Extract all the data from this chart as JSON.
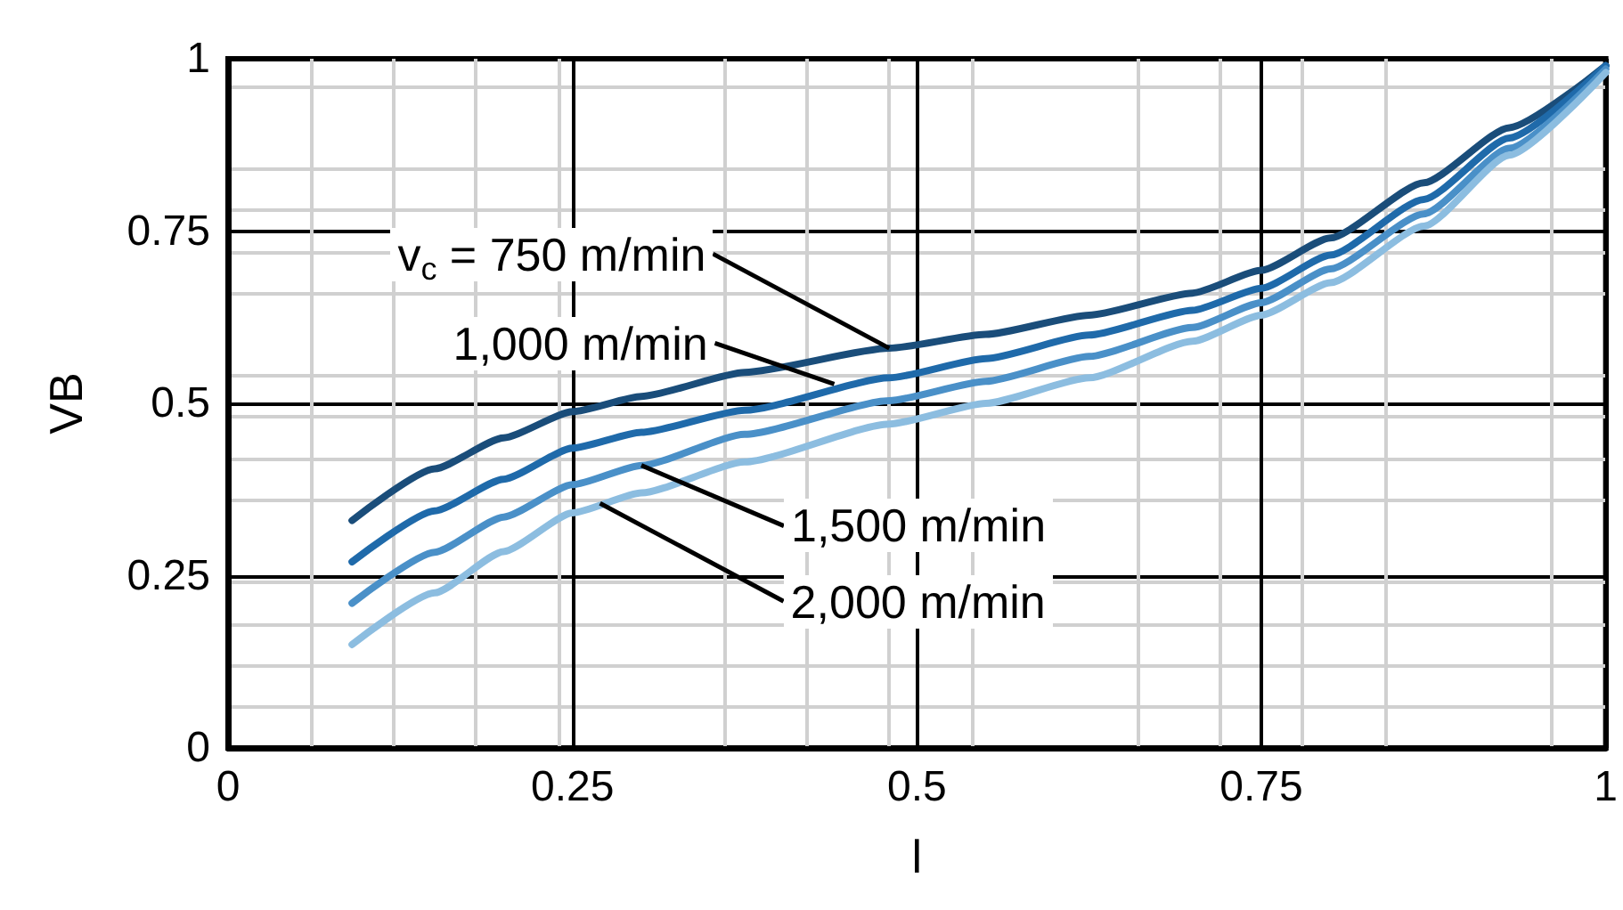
{
  "chart_data": {
    "type": "line",
    "xlabel": "l",
    "ylabel": "VB",
    "xlim": [
      0,
      1
    ],
    "ylim": [
      0,
      1
    ],
    "xticks": [
      0,
      0.25,
      0.5,
      0.75,
      1
    ],
    "yticks": [
      0,
      0.25,
      0.5,
      0.75,
      1
    ],
    "grid": true,
    "marker": "none",
    "line_style": "solid",
    "series": [
      {
        "color": "#1a4d7a",
        "x": [
          0.09,
          0.15,
          0.2,
          0.25,
          0.3,
          0.375,
          0.48,
          0.55,
          0.625,
          0.7,
          0.75,
          0.8,
          0.868,
          0.93,
          1
        ],
        "values": [
          0.33,
          0.405,
          0.45,
          0.488,
          0.51,
          0.545,
          0.58,
          0.6,
          0.628,
          0.66,
          0.693,
          0.74,
          0.82,
          0.9,
          0.99
        ]
      },
      {
        "color": "#1f6aaa",
        "x": [
          0.09,
          0.15,
          0.2,
          0.25,
          0.3,
          0.375,
          0.48,
          0.55,
          0.625,
          0.7,
          0.75,
          0.8,
          0.868,
          0.93,
          1
        ],
        "values": [
          0.27,
          0.344,
          0.39,
          0.435,
          0.458,
          0.49,
          0.537,
          0.565,
          0.599,
          0.635,
          0.667,
          0.715,
          0.796,
          0.885,
          0.99
        ]
      },
      {
        "color": "#4a90c8",
        "x": [
          0.09,
          0.15,
          0.2,
          0.25,
          0.3,
          0.375,
          0.48,
          0.55,
          0.625,
          0.7,
          0.75,
          0.8,
          0.868,
          0.93,
          1
        ],
        "values": [
          0.21,
          0.284,
          0.335,
          0.382,
          0.41,
          0.455,
          0.504,
          0.532,
          0.568,
          0.61,
          0.646,
          0.695,
          0.775,
          0.87,
          0.985
        ]
      },
      {
        "color": "#8cbde0",
        "x": [
          0.09,
          0.15,
          0.2,
          0.25,
          0.3,
          0.375,
          0.48,
          0.55,
          0.625,
          0.7,
          0.75,
          0.8,
          0.868,
          0.93,
          1
        ],
        "values": [
          0.15,
          0.225,
          0.285,
          0.341,
          0.37,
          0.415,
          0.47,
          0.5,
          0.537,
          0.59,
          0.628,
          0.675,
          0.757,
          0.86,
          0.98
        ]
      }
    ],
    "annotations": [
      {
        "text": "v$_{c}$ = 750 m/min",
        "x": 0.48,
        "y": 0.58
      },
      {
        "text": "1,000 m/min",
        "x": 0.44,
        "y": 0.528
      },
      {
        "text": "1,500 m/min",
        "x": 0.3,
        "y": 0.41
      },
      {
        "text": "2,000 m/min",
        "x": 0.27,
        "y": 0.355
      }
    ]
  }
}
